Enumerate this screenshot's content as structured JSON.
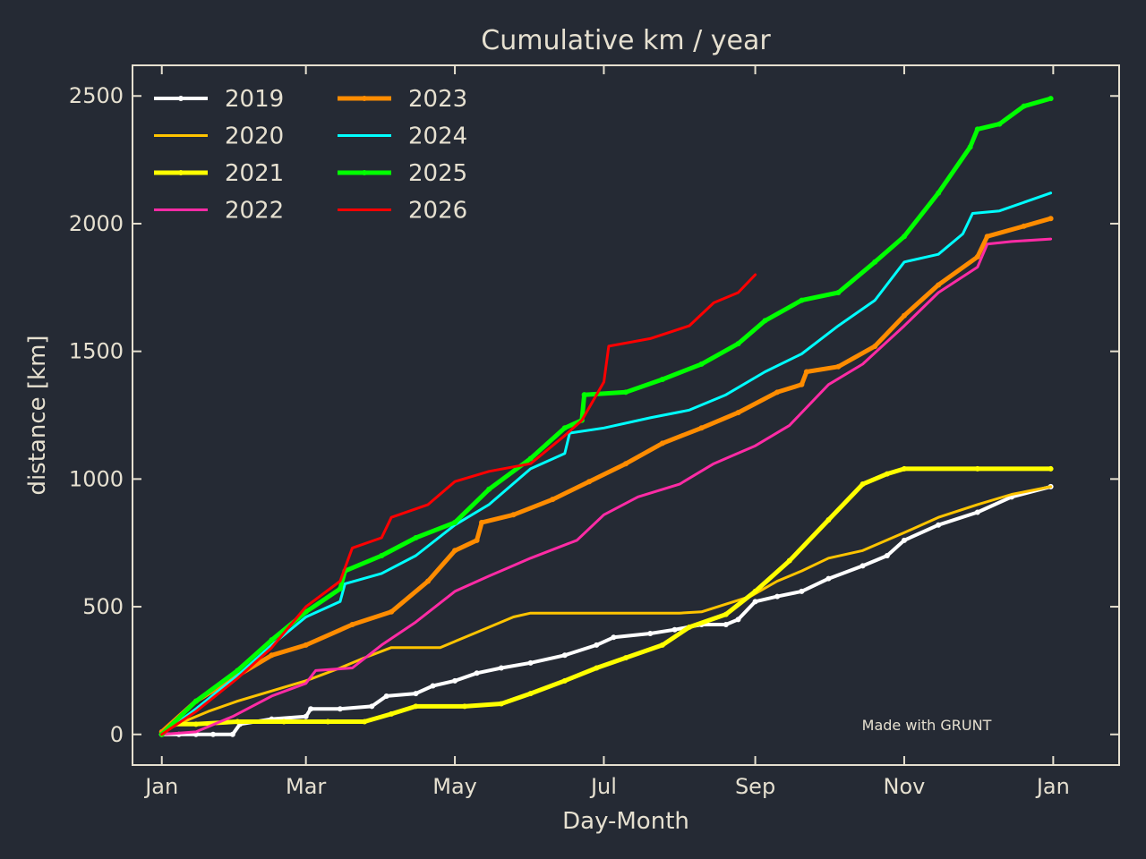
{
  "chart_data": {
    "type": "line",
    "title": "Cumulative km / year",
    "xlabel": "Day-Month",
    "ylabel": "distance [km]",
    "xlim": [
      "2000-12-20",
      "2002-01-28"
    ],
    "ylim": [
      -120,
      2620
    ],
    "x_ticks": [
      {
        "date": "2001-01-01",
        "label": "Jan"
      },
      {
        "date": "2001-03-01",
        "label": "Mar"
      },
      {
        "date": "2001-05-01",
        "label": "May"
      },
      {
        "date": "2001-07-01",
        "label": "Jul"
      },
      {
        "date": "2001-09-01",
        "label": "Sep"
      },
      {
        "date": "2001-11-01",
        "label": "Nov"
      },
      {
        "date": "2002-01-01",
        "label": "Jan"
      }
    ],
    "y_ticks": [
      0,
      500,
      1000,
      1500,
      2000,
      2500
    ],
    "grid": false,
    "legend": {
      "position": "top-left",
      "columns": 2
    },
    "annotation": "Made with GRUNT",
    "series": [
      {
        "name": "2019",
        "color": "#ffffff",
        "width": 4,
        "marker": true,
        "points": [
          [
            "2001-01-01",
            0
          ],
          [
            "2001-01-08",
            0
          ],
          [
            "2001-01-15",
            0
          ],
          [
            "2001-01-22",
            0
          ],
          [
            "2001-01-30",
            0
          ],
          [
            "2001-02-02",
            40
          ],
          [
            "2001-02-15",
            60
          ],
          [
            "2001-03-01",
            70
          ],
          [
            "2001-03-03",
            100
          ],
          [
            "2001-03-15",
            100
          ],
          [
            "2001-03-28",
            110
          ],
          [
            "2001-04-03",
            150
          ],
          [
            "2001-04-15",
            160
          ],
          [
            "2001-04-22",
            190
          ],
          [
            "2001-05-01",
            210
          ],
          [
            "2001-05-10",
            240
          ],
          [
            "2001-05-20",
            260
          ],
          [
            "2001-06-01",
            280
          ],
          [
            "2001-06-15",
            310
          ],
          [
            "2001-06-28",
            350
          ],
          [
            "2001-07-05",
            380
          ],
          [
            "2001-07-20",
            395
          ],
          [
            "2001-07-30",
            410
          ],
          [
            "2001-08-10",
            430
          ],
          [
            "2001-08-20",
            430
          ],
          [
            "2001-08-25",
            450
          ],
          [
            "2001-09-01",
            520
          ],
          [
            "2001-09-10",
            540
          ],
          [
            "2001-09-20",
            560
          ],
          [
            "2001-10-01",
            610
          ],
          [
            "2001-10-15",
            660
          ],
          [
            "2001-10-25",
            700
          ],
          [
            "2001-11-01",
            760
          ],
          [
            "2001-11-15",
            820
          ],
          [
            "2001-12-01",
            870
          ],
          [
            "2001-12-15",
            930
          ],
          [
            "2001-12-31",
            970
          ]
        ]
      },
      {
        "name": "2020",
        "color": "#ffc400",
        "width": 3,
        "marker": false,
        "points": [
          [
            "2001-01-01",
            10
          ],
          [
            "2001-01-10",
            50
          ],
          [
            "2001-01-20",
            90
          ],
          [
            "2001-02-01",
            130
          ],
          [
            "2001-02-15",
            170
          ],
          [
            "2001-03-01",
            210
          ],
          [
            "2001-03-15",
            260
          ],
          [
            "2001-03-25",
            300
          ],
          [
            "2001-04-05",
            340
          ],
          [
            "2001-04-25",
            340
          ],
          [
            "2001-05-10",
            400
          ],
          [
            "2001-05-25",
            460
          ],
          [
            "2001-06-01",
            475
          ],
          [
            "2001-06-20",
            475
          ],
          [
            "2001-07-15",
            475
          ],
          [
            "2001-08-01",
            475
          ],
          [
            "2001-08-10",
            480
          ],
          [
            "2001-08-20",
            510
          ],
          [
            "2001-08-30",
            540
          ],
          [
            "2001-09-10",
            600
          ],
          [
            "2001-09-20",
            640
          ],
          [
            "2001-10-01",
            690
          ],
          [
            "2001-10-15",
            720
          ],
          [
            "2001-11-01",
            790
          ],
          [
            "2001-11-15",
            850
          ],
          [
            "2001-12-01",
            900
          ],
          [
            "2001-12-15",
            940
          ],
          [
            "2001-12-31",
            970
          ]
        ]
      },
      {
        "name": "2021",
        "color": "#ffff00",
        "width": 5,
        "marker": true,
        "points": [
          [
            "2001-01-01",
            0
          ],
          [
            "2001-01-05",
            40
          ],
          [
            "2001-01-15",
            40
          ],
          [
            "2001-02-01",
            50
          ],
          [
            "2001-02-20",
            50
          ],
          [
            "2001-03-10",
            50
          ],
          [
            "2001-03-25",
            50
          ],
          [
            "2001-04-05",
            80
          ],
          [
            "2001-04-15",
            110
          ],
          [
            "2001-05-05",
            110
          ],
          [
            "2001-05-20",
            120
          ],
          [
            "2001-06-01",
            160
          ],
          [
            "2001-06-15",
            210
          ],
          [
            "2001-06-28",
            260
          ],
          [
            "2001-07-10",
            300
          ],
          [
            "2001-07-25",
            350
          ],
          [
            "2001-08-05",
            420
          ],
          [
            "2001-08-20",
            470
          ],
          [
            "2001-09-01",
            560
          ],
          [
            "2001-09-15",
            680
          ],
          [
            "2001-10-01",
            840
          ],
          [
            "2001-10-15",
            980
          ],
          [
            "2001-10-25",
            1020
          ],
          [
            "2001-11-01",
            1040
          ],
          [
            "2001-12-01",
            1040
          ],
          [
            "2001-12-31",
            1040
          ]
        ]
      },
      {
        "name": "2022",
        "color": "#ff2ba5",
        "width": 3,
        "marker": false,
        "points": [
          [
            "2001-01-01",
            0
          ],
          [
            "2001-01-15",
            10
          ],
          [
            "2001-01-30",
            70
          ],
          [
            "2001-02-15",
            150
          ],
          [
            "2001-03-01",
            200
          ],
          [
            "2001-03-05",
            250
          ],
          [
            "2001-03-20",
            260
          ],
          [
            "2001-04-01",
            350
          ],
          [
            "2001-04-15",
            440
          ],
          [
            "2001-05-01",
            560
          ],
          [
            "2001-05-15",
            620
          ],
          [
            "2001-06-01",
            690
          ],
          [
            "2001-06-20",
            760
          ],
          [
            "2001-07-01",
            860
          ],
          [
            "2001-07-15",
            930
          ],
          [
            "2001-08-01",
            980
          ],
          [
            "2001-08-15",
            1060
          ],
          [
            "2001-09-01",
            1130
          ],
          [
            "2001-09-15",
            1210
          ],
          [
            "2001-10-01",
            1370
          ],
          [
            "2001-10-15",
            1450
          ],
          [
            "2001-11-01",
            1600
          ],
          [
            "2001-11-15",
            1730
          ],
          [
            "2001-12-01",
            1830
          ],
          [
            "2001-12-05",
            1920
          ],
          [
            "2001-12-15",
            1930
          ],
          [
            "2001-12-31",
            1940
          ]
        ]
      },
      {
        "name": "2023",
        "color": "#ff8c00",
        "width": 5,
        "marker": true,
        "points": [
          [
            "2001-01-01",
            10
          ],
          [
            "2001-01-15",
            130
          ],
          [
            "2001-02-01",
            230
          ],
          [
            "2001-02-15",
            310
          ],
          [
            "2001-03-01",
            350
          ],
          [
            "2001-03-20",
            430
          ],
          [
            "2001-04-05",
            480
          ],
          [
            "2001-04-20",
            600
          ],
          [
            "2001-05-01",
            720
          ],
          [
            "2001-05-10",
            760
          ],
          [
            "2001-05-12",
            830
          ],
          [
            "2001-05-25",
            860
          ],
          [
            "2001-06-10",
            920
          ],
          [
            "2001-06-25",
            990
          ],
          [
            "2001-07-10",
            1060
          ],
          [
            "2001-07-25",
            1140
          ],
          [
            "2001-08-10",
            1200
          ],
          [
            "2001-08-25",
            1260
          ],
          [
            "2001-09-10",
            1340
          ],
          [
            "2001-09-20",
            1370
          ],
          [
            "2001-09-22",
            1420
          ],
          [
            "2001-10-05",
            1440
          ],
          [
            "2001-10-20",
            1520
          ],
          [
            "2001-11-01",
            1640
          ],
          [
            "2001-11-15",
            1760
          ],
          [
            "2001-12-01",
            1870
          ],
          [
            "2001-12-05",
            1950
          ],
          [
            "2001-12-20",
            1990
          ],
          [
            "2001-12-31",
            2020
          ]
        ]
      },
      {
        "name": "2024",
        "color": "#00ffff",
        "width": 3,
        "marker": false,
        "points": [
          [
            "2001-01-01",
            0
          ],
          [
            "2001-01-15",
            100
          ],
          [
            "2001-02-01",
            230
          ],
          [
            "2001-02-15",
            350
          ],
          [
            "2001-03-01",
            460
          ],
          [
            "2001-03-15",
            520
          ],
          [
            "2001-03-17",
            590
          ],
          [
            "2001-04-01",
            630
          ],
          [
            "2001-04-15",
            700
          ],
          [
            "2001-05-01",
            820
          ],
          [
            "2001-05-15",
            900
          ],
          [
            "2001-06-01",
            1040
          ],
          [
            "2001-06-15",
            1100
          ],
          [
            "2001-06-17",
            1180
          ],
          [
            "2001-07-01",
            1200
          ],
          [
            "2001-07-20",
            1240
          ],
          [
            "2001-08-05",
            1270
          ],
          [
            "2001-08-20",
            1330
          ],
          [
            "2001-09-05",
            1420
          ],
          [
            "2001-09-20",
            1490
          ],
          [
            "2001-10-05",
            1600
          ],
          [
            "2001-10-20",
            1700
          ],
          [
            "2001-11-01",
            1850
          ],
          [
            "2001-11-15",
            1880
          ],
          [
            "2001-11-25",
            1960
          ],
          [
            "2001-11-29",
            2040
          ],
          [
            "2001-12-10",
            2050
          ],
          [
            "2001-12-31",
            2120
          ]
        ]
      },
      {
        "name": "2025",
        "color": "#00ff00",
        "width": 5,
        "marker": true,
        "points": [
          [
            "2001-01-01",
            0
          ],
          [
            "2001-01-15",
            130
          ],
          [
            "2001-02-01",
            250
          ],
          [
            "2001-02-15",
            370
          ],
          [
            "2001-03-01",
            480
          ],
          [
            "2001-03-15",
            570
          ],
          [
            "2001-03-17",
            640
          ],
          [
            "2001-04-01",
            700
          ],
          [
            "2001-04-15",
            770
          ],
          [
            "2001-05-01",
            830
          ],
          [
            "2001-05-15",
            960
          ],
          [
            "2001-06-01",
            1080
          ],
          [
            "2001-06-15",
            1200
          ],
          [
            "2001-06-22",
            1230
          ],
          [
            "2001-06-23",
            1330
          ],
          [
            "2001-07-10",
            1340
          ],
          [
            "2001-07-25",
            1390
          ],
          [
            "2001-08-10",
            1450
          ],
          [
            "2001-08-25",
            1530
          ],
          [
            "2001-09-05",
            1620
          ],
          [
            "2001-09-20",
            1700
          ],
          [
            "2001-10-05",
            1730
          ],
          [
            "2001-10-20",
            1850
          ],
          [
            "2001-11-01",
            1950
          ],
          [
            "2001-11-15",
            2120
          ],
          [
            "2001-11-28",
            2300
          ],
          [
            "2001-12-01",
            2370
          ],
          [
            "2001-12-10",
            2390
          ],
          [
            "2001-12-20",
            2460
          ],
          [
            "2001-12-31",
            2490
          ]
        ]
      },
      {
        "name": "2026",
        "color": "#ff0000",
        "width": 3,
        "marker": false,
        "points": [
          [
            "2001-01-01",
            0
          ],
          [
            "2001-01-15",
            90
          ],
          [
            "2001-02-01",
            220
          ],
          [
            "2001-02-15",
            340
          ],
          [
            "2001-03-01",
            500
          ],
          [
            "2001-03-15",
            600
          ],
          [
            "2001-03-20",
            730
          ],
          [
            "2001-04-01",
            770
          ],
          [
            "2001-04-05",
            850
          ],
          [
            "2001-04-20",
            900
          ],
          [
            "2001-05-01",
            990
          ],
          [
            "2001-05-15",
            1030
          ],
          [
            "2001-06-01",
            1060
          ],
          [
            "2001-06-15",
            1170
          ],
          [
            "2001-06-22",
            1230
          ],
          [
            "2001-07-01",
            1380
          ],
          [
            "2001-07-03",
            1520
          ],
          [
            "2001-07-20",
            1550
          ],
          [
            "2001-08-05",
            1600
          ],
          [
            "2001-08-15",
            1690
          ],
          [
            "2001-08-25",
            1730
          ],
          [
            "2001-09-01",
            1800
          ]
        ]
      }
    ]
  }
}
